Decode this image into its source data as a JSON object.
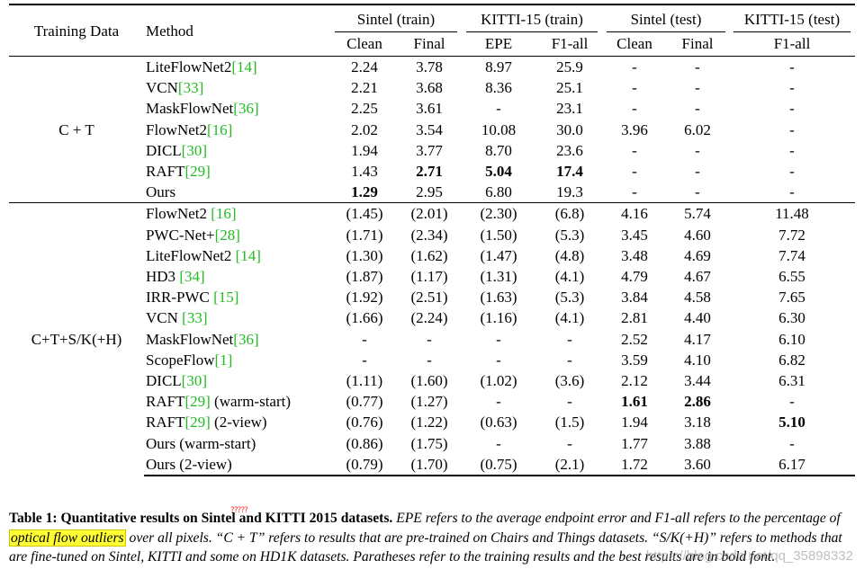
{
  "table": {
    "col_training_data": "Training Data",
    "col_method": "Method",
    "groups": [
      "Sintel (train)",
      "KITTI-15 (train)",
      "Sintel (test)",
      "KITTI-15 (test)"
    ],
    "subcols": [
      "Clean",
      "Final",
      "EPE",
      "F1-all",
      "Clean",
      "Final",
      "F1-all"
    ],
    "sections": [
      {
        "training": "C + T",
        "rows": [
          {
            "method": "LiteFlowNet2",
            "ref": "[14]",
            "suffix": "",
            "vals": [
              "2.24",
              "3.78",
              "8.97",
              "25.9",
              "-",
              "-",
              "-"
            ]
          },
          {
            "method": "VCN",
            "ref": "[33]",
            "suffix": "",
            "vals": [
              "2.21",
              "3.68",
              "8.36",
              "25.1",
              "-",
              "-",
              "-"
            ]
          },
          {
            "method": "MaskFlowNet",
            "ref": "[36]",
            "suffix": "",
            "vals": [
              "2.25",
              "3.61",
              "-",
              "23.1",
              "-",
              "-",
              "-"
            ]
          },
          {
            "method": "FlowNet2",
            "ref": "[16]",
            "suffix": "",
            "vals": [
              "2.02",
              "3.54",
              "10.08",
              "30.0",
              "3.96",
              "6.02",
              "-"
            ]
          },
          {
            "method": "DICL",
            "ref": "[30]",
            "suffix": "",
            "vals": [
              "1.94",
              "3.77",
              "8.70",
              "23.6",
              "-",
              "-",
              "-"
            ]
          },
          {
            "method": "RAFT",
            "ref": "[29]",
            "suffix": "",
            "vals": [
              "1.43",
              "2.71",
              "5.04",
              "17.4",
              "-",
              "-",
              "-"
            ],
            "bold": [
              1,
              2,
              3
            ]
          },
          {
            "method": "Ours",
            "ref": "",
            "suffix": "",
            "vals": [
              "1.29",
              "2.95",
              "6.80",
              "19.3",
              "-",
              "-",
              "-"
            ],
            "bold": [
              0
            ]
          }
        ]
      },
      {
        "training": "C+T+S/K(+H)",
        "rows": [
          {
            "method": "FlowNet2 ",
            "ref": "[16]",
            "suffix": "",
            "vals": [
              "(1.45)",
              "(2.01)",
              "(2.30)",
              "(6.8)",
              "4.16",
              "5.74",
              "11.48"
            ]
          },
          {
            "method": "PWC-Net+",
            "ref": "[28]",
            "suffix": "",
            "vals": [
              "(1.71)",
              "(2.34)",
              "(1.50)",
              "(5.3)",
              "3.45",
              "4.60",
              "7.72"
            ]
          },
          {
            "method": "LiteFlowNet2 ",
            "ref": "[14]",
            "suffix": "",
            "vals": [
              "(1.30)",
              "(1.62)",
              "(1.47)",
              "(4.8)",
              "3.48",
              "4.69",
              "7.74"
            ]
          },
          {
            "method": "HD3 ",
            "ref": "[34]",
            "suffix": "",
            "vals": [
              "(1.87)",
              "(1.17)",
              "(1.31)",
              "(4.1)",
              "4.79",
              "4.67",
              "6.55"
            ]
          },
          {
            "method": "IRR-PWC ",
            "ref": "[15]",
            "suffix": "",
            "vals": [
              "(1.92)",
              "(2.51)",
              "(1.63)",
              "(5.3)",
              "3.84",
              "4.58",
              "7.65"
            ]
          },
          {
            "method": "VCN ",
            "ref": "[33]",
            "suffix": "",
            "vals": [
              "(1.66)",
              "(2.24)",
              "(1.16)",
              "(4.1)",
              "2.81",
              "4.40",
              "6.30"
            ]
          },
          {
            "method": "MaskFlowNet",
            "ref": "[36]",
            "suffix": "",
            "vals": [
              "-",
              "-",
              "-",
              "-",
              "2.52",
              "4.17",
              "6.10"
            ]
          },
          {
            "method": "ScopeFlow",
            "ref": "[1]",
            "suffix": "",
            "vals": [
              "-",
              "-",
              "-",
              "-",
              "3.59",
              "4.10",
              "6.82"
            ]
          },
          {
            "method": "DICL",
            "ref": "[30]",
            "suffix": "",
            "vals": [
              "(1.11)",
              "(1.60)",
              "(1.02)",
              "(3.6)",
              "2.12",
              "3.44",
              "6.31"
            ]
          },
          {
            "method": "RAFT",
            "ref": "[29]",
            "suffix": " (warm-start)",
            "vals": [
              "(0.77)",
              "(1.27)",
              "-",
              "-",
              "1.61",
              "2.86",
              "-"
            ],
            "bold": [
              4,
              5
            ]
          },
          {
            "method": "RAFT",
            "ref": "[29]",
            "suffix": " (2-view)",
            "vals": [
              "(0.76)",
              "(1.22)",
              "(0.63)",
              "(1.5)",
              "1.94",
              "3.18",
              "5.10"
            ],
            "bold": [
              6
            ]
          },
          {
            "method": "Ours (warm-start)",
            "ref": "",
            "suffix": "",
            "vals": [
              "(0.86)",
              "(1.75)",
              "-",
              "-",
              "1.77",
              "3.88",
              "-"
            ]
          },
          {
            "method": "Ours (2-view)",
            "ref": "",
            "suffix": "",
            "vals": [
              "(0.79)",
              "(1.70)",
              "(0.75)",
              "(2.1)",
              "1.72",
              "3.60",
              "6.17"
            ]
          }
        ]
      }
    ]
  },
  "caption": {
    "label": "Table 1:",
    "title": "Quantitative results on Sintel and KITTI 2015 datasets.",
    "body_1": "EPE refers to the average endpoint error and F1-all refers to the percentage of ",
    "highlight": "optical flow outliers",
    "body_2": " over all pixels.  “C + T” refers to results that are pre-trained on Chairs and Things datasets. “S/K(+H)” refers to methods that are fine-tuned on Sintel, KITTI and some on HD1K datasets. Paratheses refer to the training results and the best results are in bold font.",
    "marks": "?????"
  },
  "watermark": "https://blog.csdn.net/qq_35898332",
  "colors": {
    "ref": "#22bb22",
    "highlight": "#ffff33",
    "marks": "#ff3333"
  }
}
